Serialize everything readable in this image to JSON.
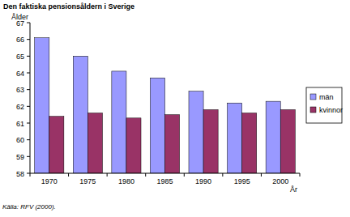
{
  "chart_data": {
    "type": "bar",
    "title": "Den faktiska pensionsåldern i Sverige",
    "y_label": "Ålder",
    "x_label": "År",
    "source": "Källa: RFV (2000).",
    "categories": [
      "1970",
      "1975",
      "1980",
      "1985",
      "1990",
      "1995",
      "2000"
    ],
    "series": [
      {
        "name": "män",
        "color": "#9999ff",
        "values": [
          66.1,
          65.0,
          64.1,
          63.7,
          62.9,
          62.2,
          62.3
        ]
      },
      {
        "name": "kvinnor",
        "color": "#993366",
        "values": [
          61.4,
          61.6,
          61.3,
          61.5,
          61.8,
          61.6,
          61.8
        ]
      }
    ],
    "ylim": [
      58,
      67
    ],
    "yticks": [
      58,
      59,
      60,
      61,
      62,
      63,
      64,
      65,
      66,
      67
    ],
    "grid": false,
    "legend": "right"
  }
}
